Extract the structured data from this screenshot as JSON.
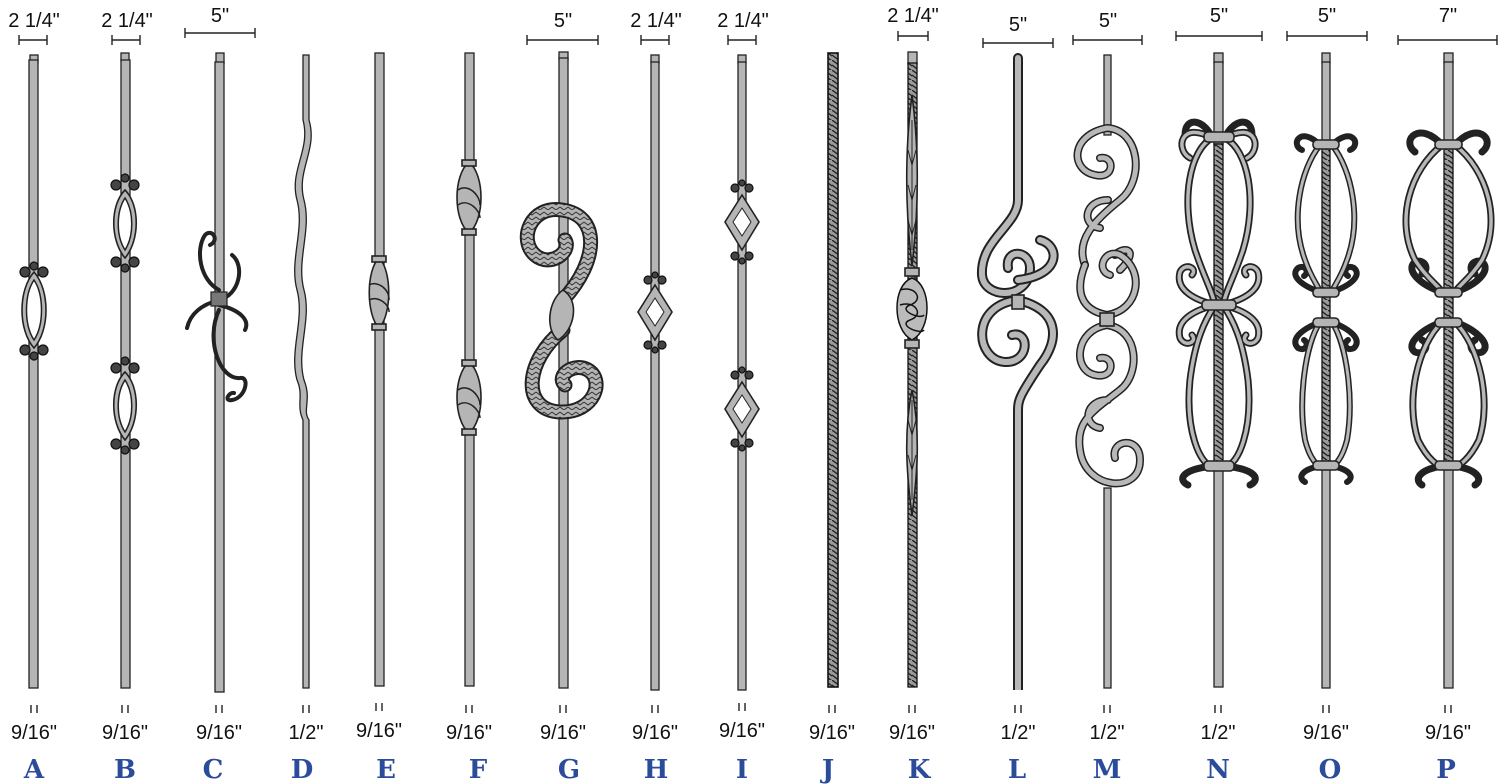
{
  "balusters": [
    {
      "letter": "A",
      "width": "2 1/4\"",
      "thickness": "9/16\""
    },
    {
      "letter": "B",
      "width": "2 1/4\"",
      "thickness": "9/16\""
    },
    {
      "letter": "C",
      "width": "5\"",
      "thickness": "9/16\""
    },
    {
      "letter": "D",
      "width": "",
      "thickness": "1/2\""
    },
    {
      "letter": "E",
      "width": "",
      "thickness": "9/16\""
    },
    {
      "letter": "F",
      "width": "",
      "thickness": "9/16\""
    },
    {
      "letter": "G",
      "width": "5\"",
      "thickness": "9/16\""
    },
    {
      "letter": "H",
      "width": "2 1/4\"",
      "thickness": "9/16\""
    },
    {
      "letter": "I",
      "width": "2 1/4\"",
      "thickness": "9/16\""
    },
    {
      "letter": "J",
      "width": "",
      "thickness": "9/16\""
    },
    {
      "letter": "K",
      "width": "2 1/4\"",
      "thickness": "9/16\""
    },
    {
      "letter": "L",
      "width": "5\"",
      "thickness": "1/2\""
    },
    {
      "letter": "M",
      "width": "5\"",
      "thickness": "1/2\""
    },
    {
      "letter": "N",
      "width": "5\"",
      "thickness": "1/2\""
    },
    {
      "letter": "O",
      "width": "5\"",
      "thickness": "9/16\""
    },
    {
      "letter": "P",
      "width": "7\"",
      "thickness": "9/16\""
    }
  ]
}
